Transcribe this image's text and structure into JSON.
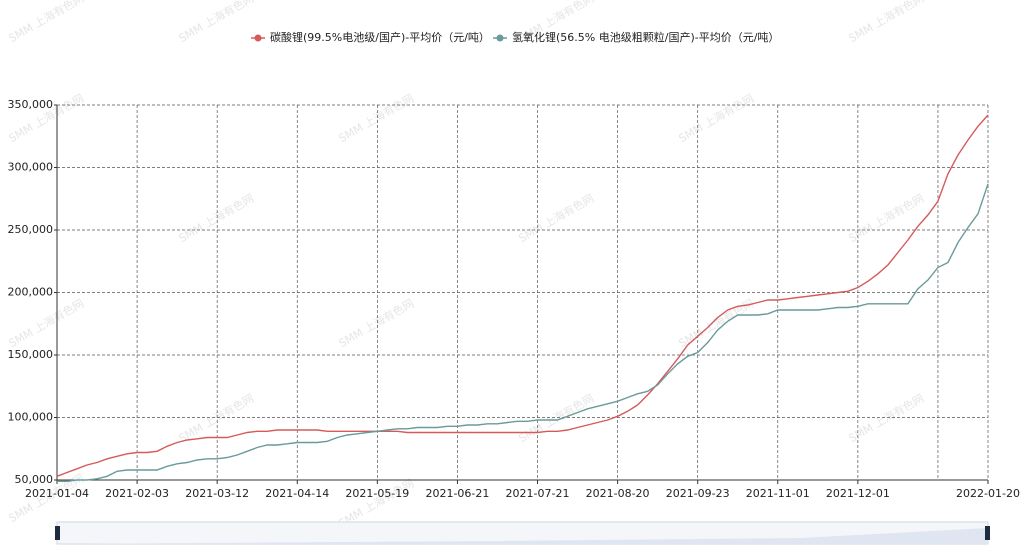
{
  "chart_data": {
    "type": "line",
    "watermark": "SMM 上海有色网",
    "categories": [
      "2021-01-04",
      null,
      null,
      null,
      null,
      null,
      null,
      null,
      "2021-02-03",
      null,
      null,
      null,
      null,
      null,
      null,
      null,
      "2021-03-12",
      null,
      null,
      null,
      null,
      null,
      null,
      null,
      "2021-04-14",
      null,
      null,
      null,
      null,
      null,
      null,
      null,
      "2021-05-19",
      null,
      null,
      null,
      null,
      null,
      null,
      null,
      "2021-06-21",
      null,
      null,
      null,
      null,
      null,
      null,
      null,
      "2021-07-21",
      null,
      null,
      null,
      null,
      null,
      null,
      null,
      "2021-08-20",
      null,
      null,
      null,
      null,
      null,
      null,
      null,
      "2021-09-23",
      null,
      null,
      null,
      null,
      null,
      null,
      null,
      "2021-11-01",
      null,
      null,
      null,
      null,
      null,
      null,
      null,
      "2021-12-01",
      null,
      null,
      null,
      null,
      null,
      null,
      null,
      null,
      null,
      null,
      null,
      null,
      "2022-01-20"
    ],
    "series": [
      {
        "name": "碳酸锂(99.5%电池级/国产)-平均价（元/吨）",
        "color": "#d65a5a",
        "values": [
          53000,
          56000,
          59000,
          62000,
          64000,
          67000,
          69000,
          71000,
          72000,
          72000,
          73000,
          77000,
          80000,
          82000,
          83000,
          84000,
          84000,
          84000,
          86000,
          88000,
          89000,
          89000,
          90000,
          90000,
          90000,
          90000,
          90000,
          89000,
          89000,
          89000,
          89000,
          89000,
          89000,
          89000,
          89000,
          88000,
          88000,
          88000,
          88000,
          88000,
          88000,
          88000,
          88000,
          88000,
          88000,
          88000,
          88000,
          88000,
          88000,
          89000,
          89000,
          90000,
          92000,
          94000,
          96000,
          98000,
          101000,
          105000,
          110000,
          118000,
          127000,
          137000,
          147000,
          158000,
          165000,
          172000,
          180000,
          186000,
          189000,
          190000,
          192000,
          194000,
          194000,
          195000,
          196000,
          197000,
          198000,
          199000,
          200000,
          201000,
          204000,
          209000,
          215000,
          222000,
          232000,
          242000,
          253000,
          262000,
          273000,
          295000,
          310000,
          322000,
          333000,
          342000
        ]
      },
      {
        "name": "氢氧化锂(56.5% 电池级粗颗粒/国产)-平均价（元/吨）",
        "color": "#6a9a9a",
        "values": [
          49000,
          49000,
          50000,
          50000,
          51000,
          53000,
          57000,
          58000,
          58000,
          58000,
          58000,
          61000,
          63000,
          64000,
          66000,
          67000,
          67000,
          68000,
          70000,
          73000,
          76000,
          78000,
          78000,
          79000,
          80000,
          80000,
          80000,
          81000,
          84000,
          86000,
          87000,
          88000,
          89000,
          90000,
          91000,
          91000,
          92000,
          92000,
          92000,
          93000,
          93000,
          94000,
          94000,
          95000,
          95000,
          96000,
          97000,
          97000,
          98000,
          98000,
          98000,
          101000,
          104000,
          107000,
          109000,
          111000,
          113000,
          116000,
          119000,
          121000,
          126000,
          135000,
          143000,
          149000,
          152000,
          160000,
          170000,
          177000,
          182000,
          182000,
          182000,
          183000,
          186000,
          186000,
          186000,
          186000,
          186000,
          187000,
          188000,
          188000,
          189000,
          191000,
          191000,
          191000,
          191000,
          191000,
          203000,
          210000,
          220000,
          224000,
          240000,
          252000,
          263000,
          287000
        ]
      }
    ],
    "ylim": [
      50000,
      350000
    ],
    "yticks": [
      {
        "value": 50000,
        "label": "50,000"
      },
      {
        "value": 100000,
        "label": "100,000"
      },
      {
        "value": 150000,
        "label": "150,000"
      },
      {
        "value": 200000,
        "label": "200,000"
      },
      {
        "value": 250000,
        "label": "250,000"
      },
      {
        "value": 300000,
        "label": "300,000"
      },
      {
        "value": 350000,
        "label": "350,000"
      }
    ],
    "grid": true
  }
}
